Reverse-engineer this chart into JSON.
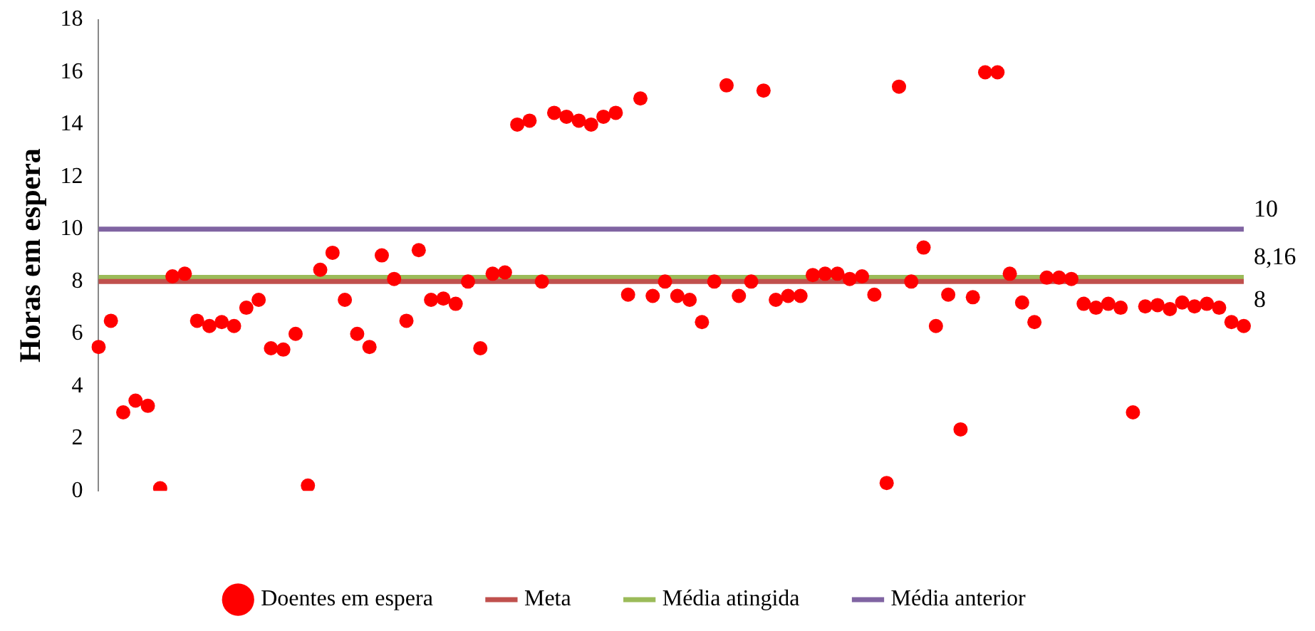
{
  "chart_data": {
    "type": "scatter",
    "ylabel": "Horas em espera",
    "categories": [
      null,
      null,
      null,
      null,
      null,
      null,
      null,
      null,
      null,
      null,
      null,
      null,
      null,
      null,
      null,
      null,
      null,
      null,
      null,
      null,
      null,
      null,
      null,
      null,
      null,
      null,
      null,
      null,
      null,
      null,
      null,
      null,
      null,
      null,
      null,
      null,
      null,
      null,
      null,
      null,
      null,
      null,
      null,
      null,
      null,
      null,
      null,
      null,
      null,
      null,
      null,
      null,
      null,
      null,
      null,
      null,
      null,
      null,
      null,
      null,
      null,
      null,
      null,
      null,
      null,
      null,
      null,
      null,
      null,
      null,
      null,
      null,
      null,
      null,
      null,
      null,
      null,
      null,
      null,
      null,
      null,
      null,
      null,
      null,
      null,
      null,
      null,
      null,
      null,
      null,
      null,
      null,
      null,
      null
    ],
    "ylim": [
      0,
      18
    ],
    "yticks": [
      0,
      2,
      4,
      6,
      8,
      10,
      12,
      14,
      16,
      18
    ],
    "grid": false,
    "legend": "bottom",
    "marker": "circle",
    "series": [
      {
        "name": "Doentes em espera",
        "color": "#ff0000",
        "values": [
          5.5,
          6.5,
          3.0,
          3.45,
          3.25,
          0.1,
          8.2,
          8.3,
          6.5,
          6.3,
          6.45,
          6.3,
          7.0,
          7.3,
          5.45,
          5.4,
          6.0,
          0.2,
          8.45,
          9.1,
          7.3,
          6.0,
          5.5,
          9.0,
          8.1,
          6.5,
          9.2,
          7.3,
          7.35,
          7.15,
          8.0,
          5.45,
          8.3,
          8.35,
          14.0,
          14.15,
          8.0,
          14.45,
          14.3,
          14.15,
          14.0,
          14.3,
          14.45,
          7.5,
          15.0,
          7.45,
          8.0,
          7.45,
          7.3,
          6.45,
          8.0,
          15.5,
          7.45,
          8.0,
          15.3,
          7.3,
          7.45,
          7.45,
          8.25,
          8.3,
          8.3,
          8.1,
          8.2,
          7.5,
          0.3,
          15.45,
          8.0,
          9.3,
          6.3,
          7.5,
          2.35,
          7.4,
          16.0,
          16.0,
          8.3,
          7.2,
          6.45,
          8.15,
          8.15,
          8.1,
          7.15,
          7.0,
          7.15,
          7.0,
          3.0,
          7.05,
          7.1,
          6.95,
          7.2,
          7.05,
          7.15,
          7.0,
          6.45,
          6.3
        ]
      },
      {
        "name": "Meta",
        "type": "line",
        "marker": "none",
        "color": "#c0504d",
        "values": [
          8,
          8,
          8,
          8,
          8,
          8,
          8,
          8,
          8,
          8,
          8,
          8,
          8,
          8,
          8,
          8,
          8,
          8,
          8,
          8,
          8,
          8,
          8,
          8,
          8,
          8,
          8,
          8,
          8,
          8,
          8,
          8,
          8,
          8,
          8,
          8,
          8,
          8,
          8,
          8,
          8,
          8,
          8,
          8,
          8,
          8,
          8,
          8,
          8,
          8,
          8,
          8,
          8,
          8,
          8,
          8,
          8,
          8,
          8,
          8,
          8,
          8,
          8,
          8,
          8,
          8,
          8,
          8,
          8,
          8,
          8,
          8,
          8,
          8,
          8,
          8,
          8,
          8,
          8,
          8,
          8,
          8,
          8,
          8,
          8,
          8,
          8,
          8,
          8,
          8,
          8,
          8,
          8,
          8
        ],
        "value_labels": [
          null,
          null,
          null,
          null,
          null,
          null,
          null,
          null,
          null,
          null,
          null,
          null,
          null,
          null,
          null,
          null,
          null,
          null,
          null,
          null,
          null,
          null,
          null,
          null,
          null,
          null,
          null,
          null,
          null,
          null,
          null,
          null,
          null,
          null,
          null,
          null,
          null,
          null,
          null,
          null,
          null,
          null,
          null,
          null,
          null,
          null,
          null,
          null,
          null,
          null,
          null,
          null,
          null,
          null,
          null,
          null,
          null,
          null,
          null,
          null,
          null,
          null,
          null,
          null,
          null,
          null,
          null,
          null,
          null,
          null,
          null,
          null,
          null,
          null,
          null,
          null,
          null,
          null,
          null,
          null,
          null,
          null,
          null,
          null,
          null,
          null,
          null,
          null,
          null,
          null,
          null,
          null,
          null,
          "8"
        ]
      },
      {
        "name": "Média atingida",
        "type": "line",
        "marker": "none",
        "color": "#9bbb59",
        "values": [
          8.16,
          8.16,
          8.16,
          8.16,
          8.16,
          8.16,
          8.16,
          8.16,
          8.16,
          8.16,
          8.16,
          8.16,
          8.16,
          8.16,
          8.16,
          8.16,
          8.16,
          8.16,
          8.16,
          8.16,
          8.16,
          8.16,
          8.16,
          8.16,
          8.16,
          8.16,
          8.16,
          8.16,
          8.16,
          8.16,
          8.16,
          8.16,
          8.16,
          8.16,
          8.16,
          8.16,
          8.16,
          8.16,
          8.16,
          8.16,
          8.16,
          8.16,
          8.16,
          8.16,
          8.16,
          8.16,
          8.16,
          8.16,
          8.16,
          8.16,
          8.16,
          8.16,
          8.16,
          8.16,
          8.16,
          8.16,
          8.16,
          8.16,
          8.16,
          8.16,
          8.16,
          8.16,
          8.16,
          8.16,
          8.16,
          8.16,
          8.16,
          8.16,
          8.16,
          8.16,
          8.16,
          8.16,
          8.16,
          8.16,
          8.16,
          8.16,
          8.16,
          8.16,
          8.16,
          8.16,
          8.16,
          8.16,
          8.16,
          8.16,
          8.16,
          8.16,
          8.16,
          8.16,
          8.16,
          8.16,
          8.16,
          8.16,
          8.16,
          8.16
        ],
        "value_labels": [
          null,
          null,
          null,
          null,
          null,
          null,
          null,
          null,
          null,
          null,
          null,
          null,
          null,
          null,
          null,
          null,
          null,
          null,
          null,
          null,
          null,
          null,
          null,
          null,
          null,
          null,
          null,
          null,
          null,
          null,
          null,
          null,
          null,
          null,
          null,
          null,
          null,
          null,
          null,
          null,
          null,
          null,
          null,
          null,
          null,
          null,
          null,
          null,
          null,
          null,
          null,
          null,
          null,
          null,
          null,
          null,
          null,
          null,
          null,
          null,
          null,
          null,
          null,
          null,
          null,
          null,
          null,
          null,
          null,
          null,
          null,
          null,
          null,
          null,
          null,
          null,
          null,
          null,
          null,
          null,
          null,
          null,
          null,
          null,
          null,
          null,
          null,
          null,
          null,
          null,
          null,
          null,
          null,
          "8,16"
        ]
      },
      {
        "name": "Média anterior",
        "type": "line",
        "marker": "none",
        "color": "#8064a2",
        "values": [
          10,
          10,
          10,
          10,
          10,
          10,
          10,
          10,
          10,
          10,
          10,
          10,
          10,
          10,
          10,
          10,
          10,
          10,
          10,
          10,
          10,
          10,
          10,
          10,
          10,
          10,
          10,
          10,
          10,
          10,
          10,
          10,
          10,
          10,
          10,
          10,
          10,
          10,
          10,
          10,
          10,
          10,
          10,
          10,
          10,
          10,
          10,
          10,
          10,
          10,
          10,
          10,
          10,
          10,
          10,
          10,
          10,
          10,
          10,
          10,
          10,
          10,
          10,
          10,
          10,
          10,
          10,
          10,
          10,
          10,
          10,
          10,
          10,
          10,
          10,
          10,
          10,
          10,
          10,
          10,
          10,
          10,
          10,
          10,
          10,
          10,
          10,
          10,
          10,
          10,
          10,
          10,
          10,
          10
        ],
        "value_labels": [
          null,
          null,
          null,
          null,
          null,
          null,
          null,
          null,
          null,
          null,
          null,
          null,
          null,
          null,
          null,
          null,
          null,
          null,
          null,
          null,
          null,
          null,
          null,
          null,
          null,
          null,
          null,
          null,
          null,
          null,
          null,
          null,
          null,
          null,
          null,
          null,
          null,
          null,
          null,
          null,
          null,
          null,
          null,
          null,
          null,
          null,
          null,
          null,
          null,
          null,
          null,
          null,
          null,
          null,
          null,
          null,
          null,
          null,
          null,
          null,
          null,
          null,
          null,
          null,
          null,
          null,
          null,
          null,
          null,
          null,
          null,
          null,
          null,
          null,
          null,
          null,
          null,
          null,
          null,
          null,
          null,
          null,
          null,
          null,
          null,
          null,
          null,
          null,
          null,
          null,
          null,
          null,
          null,
          "10"
        ]
      }
    ]
  }
}
